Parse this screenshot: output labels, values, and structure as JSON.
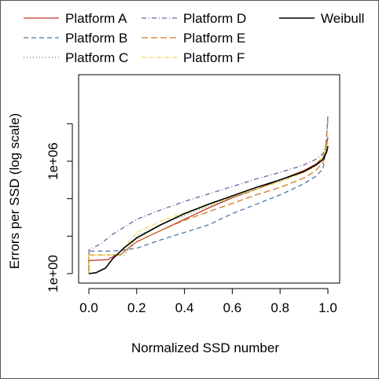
{
  "chart_data": {
    "type": "line",
    "title": "",
    "xlabel": "Normalized SSD number",
    "ylabel": "Errors per SSD (log scale)",
    "x_scale": "linear",
    "y_scale": "log",
    "xlim": [
      0,
      1
    ],
    "ylim_log10": [
      -0.3,
      8.5
    ],
    "x_ticks": [
      0.0,
      0.2,
      0.4,
      0.6,
      0.8,
      1.0
    ],
    "x_tick_labels": [
      "0.0",
      "0.2",
      "0.4",
      "0.6",
      "0.8",
      "1.0"
    ],
    "y_ticks_log10": [
      0,
      6
    ],
    "y_tick_labels": [
      "1e+00",
      "1e+06"
    ],
    "legend_placement": "top",
    "series": [
      {
        "name": "Platform A",
        "color": "#c0392b",
        "dash": "solid",
        "x": [
          0.0,
          0.0,
          0.01,
          0.08,
          0.1,
          0.11,
          0.13,
          0.2,
          0.3,
          0.4,
          0.5,
          0.6,
          0.7,
          0.8,
          0.9,
          0.95,
          0.98,
          0.99,
          1.0
        ],
        "log10_y": [
          0.0,
          0.7,
          0.7,
          0.75,
          0.9,
          1.0,
          1.0,
          1.7,
          2.3,
          2.9,
          3.5,
          4.05,
          4.5,
          5.0,
          5.5,
          5.85,
          6.2,
          6.6,
          7.3
        ]
      },
      {
        "name": "Platform B",
        "color": "#4a78a6",
        "dash": "6,4",
        "x": [
          0.0,
          0.0,
          0.1,
          0.2,
          0.3,
          0.4,
          0.5,
          0.6,
          0.7,
          0.8,
          0.9,
          0.95,
          0.98,
          0.99,
          1.0
        ],
        "log10_y": [
          0.0,
          1.2,
          1.2,
          1.35,
          1.8,
          2.2,
          2.6,
          3.2,
          3.7,
          4.2,
          4.8,
          5.2,
          5.6,
          6.5,
          8.4
        ]
      },
      {
        "name": "Platform C",
        "color": "#4d8b3a",
        "dash": "1,3",
        "x": [
          0.0,
          0.0,
          0.15,
          0.2,
          0.3,
          0.4,
          0.5,
          0.6,
          0.7,
          0.8,
          0.9,
          0.95,
          0.98,
          1.0
        ],
        "log10_y": [
          0.0,
          1.0,
          1.0,
          2.0,
          2.6,
          3.1,
          3.6,
          4.05,
          4.5,
          4.95,
          5.4,
          5.75,
          6.1,
          7.0
        ]
      },
      {
        "name": "Platform D",
        "color": "#7a5fa0",
        "dash": "6,3,1,3",
        "x": [
          0.0,
          0.0,
          0.05,
          0.1,
          0.2,
          0.3,
          0.4,
          0.5,
          0.6,
          0.7,
          0.8,
          0.9,
          0.95,
          0.98,
          1.0
        ],
        "log10_y": [
          0.0,
          1.25,
          1.6,
          2.1,
          2.9,
          3.4,
          3.85,
          4.25,
          4.65,
          5.05,
          5.4,
          5.8,
          6.1,
          6.4,
          7.2
        ]
      },
      {
        "name": "Platform E",
        "color": "#d07a1e",
        "dash": "8,4",
        "x": [
          0.0,
          0.0,
          0.13,
          0.2,
          0.3,
          0.4,
          0.5,
          0.6,
          0.7,
          0.8,
          0.9,
          0.95,
          0.98,
          0.99,
          1.0
        ],
        "log10_y": [
          0.0,
          1.0,
          1.0,
          1.7,
          2.3,
          2.85,
          3.3,
          3.75,
          4.2,
          4.6,
          5.1,
          5.5,
          5.95,
          6.5,
          8.2
        ]
      },
      {
        "name": "Platform F",
        "color": "#f1d84a",
        "dash": "5,2,1,2",
        "x": [
          0.0,
          0.0,
          0.12,
          0.2,
          0.3,
          0.4,
          0.5,
          0.6,
          0.7,
          0.8,
          0.9,
          0.95,
          0.98,
          1.0
        ],
        "log10_y": [
          0.0,
          1.0,
          1.0,
          2.2,
          2.8,
          3.25,
          3.65,
          4.1,
          4.5,
          4.9,
          5.4,
          5.8,
          6.2,
          7.0
        ]
      },
      {
        "name": "Weibull",
        "color": "#000000",
        "dash": "solid",
        "x": [
          0.0,
          0.03,
          0.07,
          0.1,
          0.15,
          0.2,
          0.3,
          0.4,
          0.5,
          0.6,
          0.7,
          0.8,
          0.9,
          0.95,
          0.98,
          0.995,
          1.0
        ],
        "log10_y": [
          0.0,
          0.05,
          0.3,
          0.8,
          1.4,
          1.9,
          2.6,
          3.2,
          3.7,
          4.15,
          4.6,
          5.0,
          5.45,
          5.8,
          6.1,
          6.5,
          6.8
        ]
      }
    ]
  }
}
